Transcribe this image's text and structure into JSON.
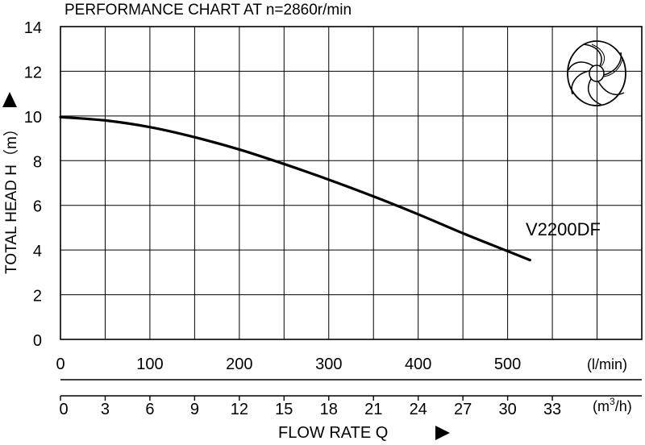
{
  "chart_data": {
    "type": "line",
    "title": "PERFORMANCE  CHART  AT  n=2860r/min",
    "ylabel": "TOTAL HEAD  H（m）",
    "xlabel": "FLOW  RATE  Q",
    "x_unit_lmin": "(l/min)",
    "x_unit_m3h_prefix": "(m",
    "x_unit_m3h_sup": "3",
    "x_unit_m3h_suffix": "/h)",
    "ylim": [
      0,
      14
    ],
    "xlim_lmin": [
      0,
      650
    ],
    "y_ticks": [
      "0",
      "2",
      "4",
      "6",
      "8",
      "10",
      "12",
      "14"
    ],
    "x_ticks_lmin": [
      "0",
      "100",
      "200",
      "300",
      "400",
      "500"
    ],
    "x_ticks_m3h": [
      "0",
      "3",
      "6",
      "9",
      "12",
      "15",
      "18",
      "21",
      "24",
      "27",
      "30",
      "33"
    ],
    "grid": true,
    "series": [
      {
        "name": "V2200DF",
        "x": [
          0,
          50,
          100,
          150,
          200,
          250,
          300,
          350,
          400,
          450,
          500,
          525
        ],
        "y": [
          9.95,
          9.8,
          9.5,
          9.05,
          8.5,
          7.85,
          7.15,
          6.4,
          5.6,
          4.75,
          3.95,
          3.55
        ]
      }
    ],
    "colors": {
      "line": "#000000",
      "grid": "#000000",
      "background": "#ffffff"
    },
    "icon": "impeller-icon"
  }
}
